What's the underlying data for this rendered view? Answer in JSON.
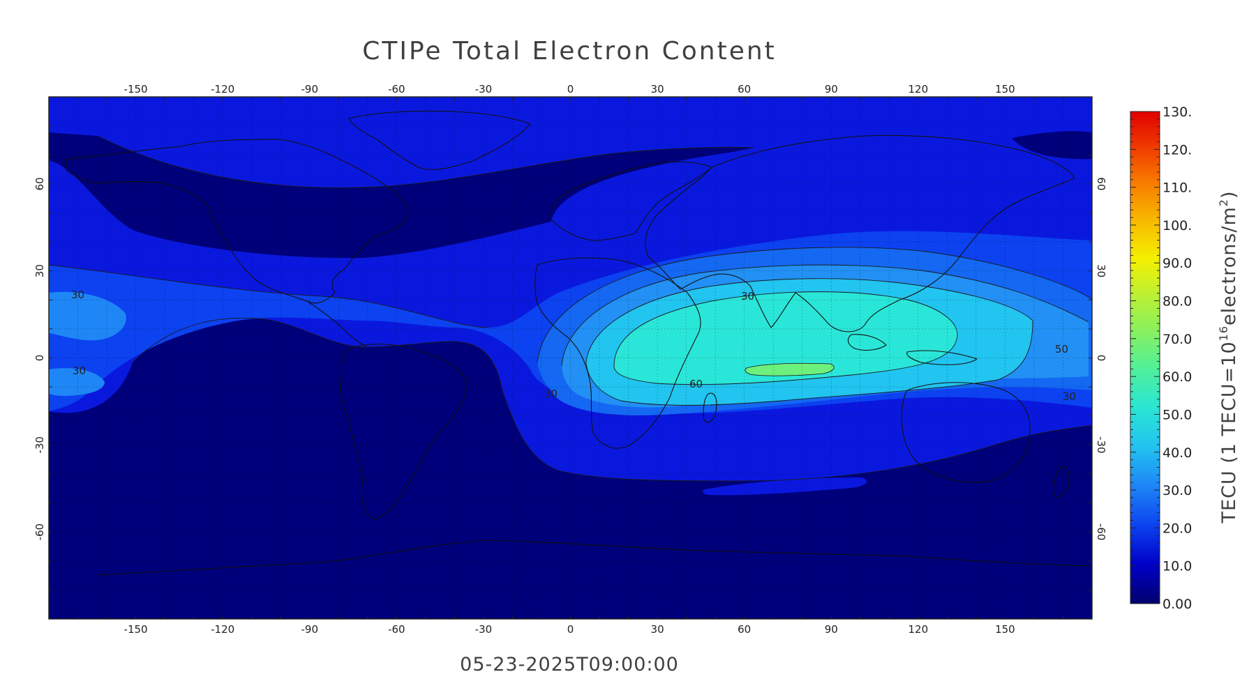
{
  "title": "CTIPe Total Electron Content",
  "timestamp": "05-23-2025T09:00:00",
  "map": {
    "projection": "equirectangular",
    "lon_range": [
      -180,
      180
    ],
    "lat_range": [
      -90,
      90
    ],
    "grid": true,
    "lon_ticks": [
      "-150",
      "-120",
      "-90",
      "-60",
      "-30",
      "0",
      "30",
      "60",
      "90",
      "120",
      "150"
    ],
    "lat_ticks": [
      "60",
      "30",
      "0",
      "-30",
      "-60"
    ],
    "contour_labels": [
      "30",
      "30",
      "30",
      "30",
      "30",
      "60",
      "50"
    ]
  },
  "colorbar": {
    "title_main": "TECU (1 TECU=10",
    "title_sup1": "16",
    "title_mid": "electrons/m",
    "title_sup2": "2",
    "title_end": ")",
    "min": 0,
    "max": 130,
    "labels": [
      "130.",
      "120.",
      "110.",
      "100.",
      "90.0",
      "80.0",
      "70.0",
      "60.0",
      "50.0",
      "40.0",
      "30.0",
      "20.0",
      "10.0",
      "0.00"
    ],
    "colors": [
      "#00007a",
      "#0000d8",
      "#0a3cf0",
      "#1f7cf6",
      "#22b8f2",
      "#22e2d8",
      "#4ef09c",
      "#8cf05a",
      "#c8f02e",
      "#f6f000",
      "#f8b400",
      "#f87800",
      "#f03c00",
      "#e00000"
    ]
  }
}
